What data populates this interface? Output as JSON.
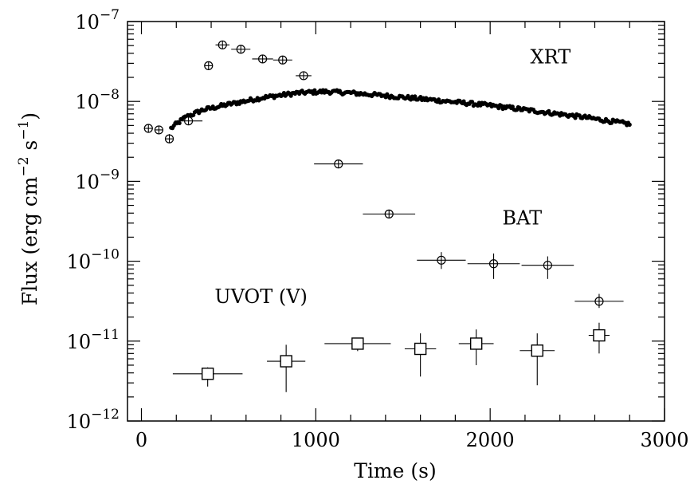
{
  "chart_data": {
    "type": "scatter",
    "title": "",
    "xlabel": "Time (s)",
    "ylabel_main": "Flux (erg cm",
    "ylabel_exp1": "−2",
    "ylabel_mid": " s",
    "ylabel_exp2": "−1",
    "ylabel_end": ")",
    "xlim": [
      -80,
      3000
    ],
    "ylim": [
      1e-12,
      1e-07
    ],
    "y_scale": "log",
    "grid": false,
    "x_ticks": [
      {
        "value": 0,
        "label": "0"
      },
      {
        "value": 1000,
        "label": "1000"
      },
      {
        "value": 2000,
        "label": "2000"
      },
      {
        "value": 3000,
        "label": "3000"
      }
    ],
    "y_ticks": [
      {
        "exp": -12,
        "base": "10",
        "power": "−12"
      },
      {
        "exp": -11,
        "base": "10",
        "power": "−11"
      },
      {
        "exp": -10,
        "base": "10",
        "power": "−10"
      },
      {
        "exp": -9,
        "base": "10",
        "power": "−9"
      },
      {
        "exp": -8,
        "base": "10",
        "power": "−8"
      },
      {
        "exp": -7,
        "base": "10",
        "power": "−7"
      }
    ],
    "series": [
      {
        "name": "BAT",
        "marker": "circle",
        "label_at": [
          2070,
          2.9e-10
        ],
        "points": [
          {
            "x": 40,
            "xerr": 25,
            "y": 4.6e-09,
            "ylo": 4.6e-09,
            "yhi": 4.6e-09
          },
          {
            "x": 100,
            "xerr": 25,
            "y": 4.4e-09,
            "ylo": 4.4e-09,
            "yhi": 4.4e-09
          },
          {
            "x": 160,
            "xerr": 25,
            "y": 3.4e-09,
            "ylo": 3e-09,
            "yhi": 3.9e-09
          },
          {
            "x": 270,
            "xerr": 80,
            "y": 5.7e-09,
            "ylo": 5.7e-09,
            "yhi": 5.7e-09
          },
          {
            "x": 385,
            "xerr": 0,
            "y": 2.8e-08,
            "ylo": 2.8e-08,
            "yhi": 2.8e-08
          },
          {
            "x": 465,
            "xerr": 40,
            "y": 5.1e-08,
            "ylo": 5.1e-08,
            "yhi": 5.1e-08
          },
          {
            "x": 570,
            "xerr": 55,
            "y": 4.5e-08,
            "ylo": 4.5e-08,
            "yhi": 4.5e-08
          },
          {
            "x": 695,
            "xerr": 60,
            "y": 3.4e-08,
            "ylo": 3.4e-08,
            "yhi": 3.4e-08
          },
          {
            "x": 810,
            "xerr": 55,
            "y": 3.3e-08,
            "ylo": 3.3e-08,
            "yhi": 3.3e-08
          },
          {
            "x": 930,
            "xerr": 45,
            "y": 2.1e-08,
            "ylo": 2.1e-08,
            "yhi": 2.1e-08
          },
          {
            "x": 1130,
            "xerr": 140,
            "y": 1.65e-09,
            "ylo": 1.65e-09,
            "yhi": 1.65e-09
          },
          {
            "x": 1420,
            "xerr": 150,
            "y": 3.9e-10,
            "ylo": 3.9e-10,
            "yhi": 3.9e-10
          },
          {
            "x": 1720,
            "xerr": 140,
            "y": 1.03e-10,
            "ylo": 8e-11,
            "yhi": 1.3e-10
          },
          {
            "x": 2020,
            "xerr": 150,
            "y": 9.3e-11,
            "ylo": 6e-11,
            "yhi": 1.25e-10
          },
          {
            "x": 2330,
            "xerr": 150,
            "y": 8.9e-11,
            "ylo": 6e-11,
            "yhi": 1.15e-10
          },
          {
            "x": 2625,
            "xerr": 140,
            "y": 3.15e-11,
            "ylo": 2.6e-11,
            "yhi": 3.9e-11
          }
        ]
      },
      {
        "name": "UVOT (V)",
        "marker": "square",
        "label_at": [
          420,
          3e-11
        ],
        "points": [
          {
            "x": 380,
            "xerr": 200,
            "y": 3.9e-12,
            "ylo": 2.7e-12,
            "yhi": 4.7e-12
          },
          {
            "x": 830,
            "xerr": 110,
            "y": 5.6e-12,
            "ylo": 2.3e-12,
            "yhi": 9e-12
          },
          {
            "x": 1240,
            "xerr": 190,
            "y": 9.3e-12,
            "ylo": 7.5e-12,
            "yhi": 1.05e-11
          },
          {
            "x": 1600,
            "xerr": 90,
            "y": 8e-12,
            "ylo": 3.6e-12,
            "yhi": 1.25e-11
          },
          {
            "x": 1920,
            "xerr": 100,
            "y": 9.3e-12,
            "ylo": 5e-12,
            "yhi": 1.4e-11
          },
          {
            "x": 2270,
            "xerr": 100,
            "y": 7.6e-12,
            "ylo": 2.8e-12,
            "yhi": 1.25e-11
          },
          {
            "x": 2625,
            "xerr": 60,
            "y": 1.18e-11,
            "ylo": 7e-12,
            "yhi": 1.7e-11
          }
        ]
      },
      {
        "name": "XRT",
        "marker": "filled-dot",
        "label_at": [
          2230,
          3e-08
        ],
        "curve_knots": [
          {
            "x": 170,
            "y": 4.6e-09
          },
          {
            "x": 250,
            "y": 6.3e-09
          },
          {
            "x": 350,
            "y": 7.8e-09
          },
          {
            "x": 500,
            "y": 9.2e-09
          },
          {
            "x": 700,
            "y": 1.12e-08
          },
          {
            "x": 900,
            "y": 1.28e-08
          },
          {
            "x": 1050,
            "y": 1.33e-08
          },
          {
            "x": 1200,
            "y": 1.28e-08
          },
          {
            "x": 1400,
            "y": 1.18e-08
          },
          {
            "x": 1700,
            "y": 1.03e-08
          },
          {
            "x": 2000,
            "y": 8.9e-09
          },
          {
            "x": 2300,
            "y": 7.4e-09
          },
          {
            "x": 2550,
            "y": 6.3e-09
          },
          {
            "x": 2800,
            "y": 5.2e-09
          }
        ],
        "x_range": [
          170,
          2800
        ],
        "n_points": 330,
        "scatter_dex": 0.025
      }
    ]
  }
}
